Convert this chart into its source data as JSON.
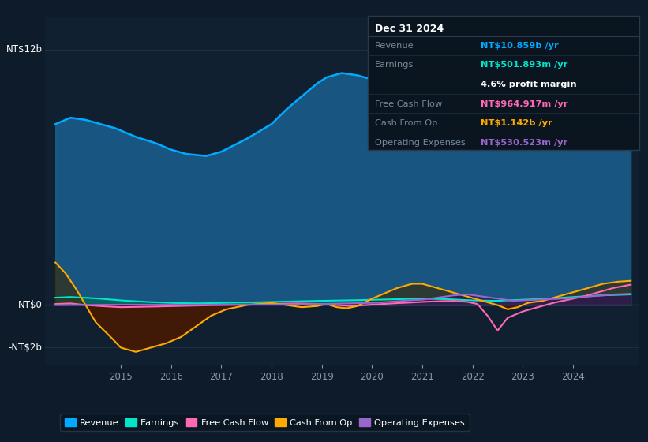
{
  "bg_color": "#0d1b2a",
  "plot_bg_color": "#102030",
  "ylim": [
    -2800000000.0,
    13500000000.0
  ],
  "xstart": 2013.5,
  "xend": 2025.3,
  "xtick_years": [
    2015,
    2016,
    2017,
    2018,
    2019,
    2020,
    2021,
    2022,
    2023,
    2024
  ],
  "colors": {
    "revenue": "#00aaff",
    "revenue_fill": "#1a6090",
    "earnings": "#00e5cc",
    "earnings_fill": "#006655",
    "free_cash_flow": "#ff69b4",
    "cash_from_op": "#ffaa00",
    "cash_fill_neg": "#4a1800",
    "cash_fill_pos": "#3a2800",
    "operating_expenses": "#9966cc",
    "op_fill": "#331155"
  },
  "tooltip": {
    "date": "Dec 31 2024",
    "revenue_label": "Revenue",
    "revenue_val": "NT$10.859b /yr",
    "earnings_label": "Earnings",
    "earnings_val": "NT$501.893m /yr",
    "profit_margin": "4.6% profit margin",
    "fcf_label": "Free Cash Flow",
    "fcf_val": "NT$964.917m /yr",
    "cfop_label": "Cash From Op",
    "cfop_val": "NT$1.142b /yr",
    "opex_label": "Operating Expenses",
    "opex_val": "NT$530.523m /yr"
  },
  "legend_labels": [
    "Revenue",
    "Earnings",
    "Free Cash Flow",
    "Cash From Op",
    "Operating Expenses"
  ]
}
